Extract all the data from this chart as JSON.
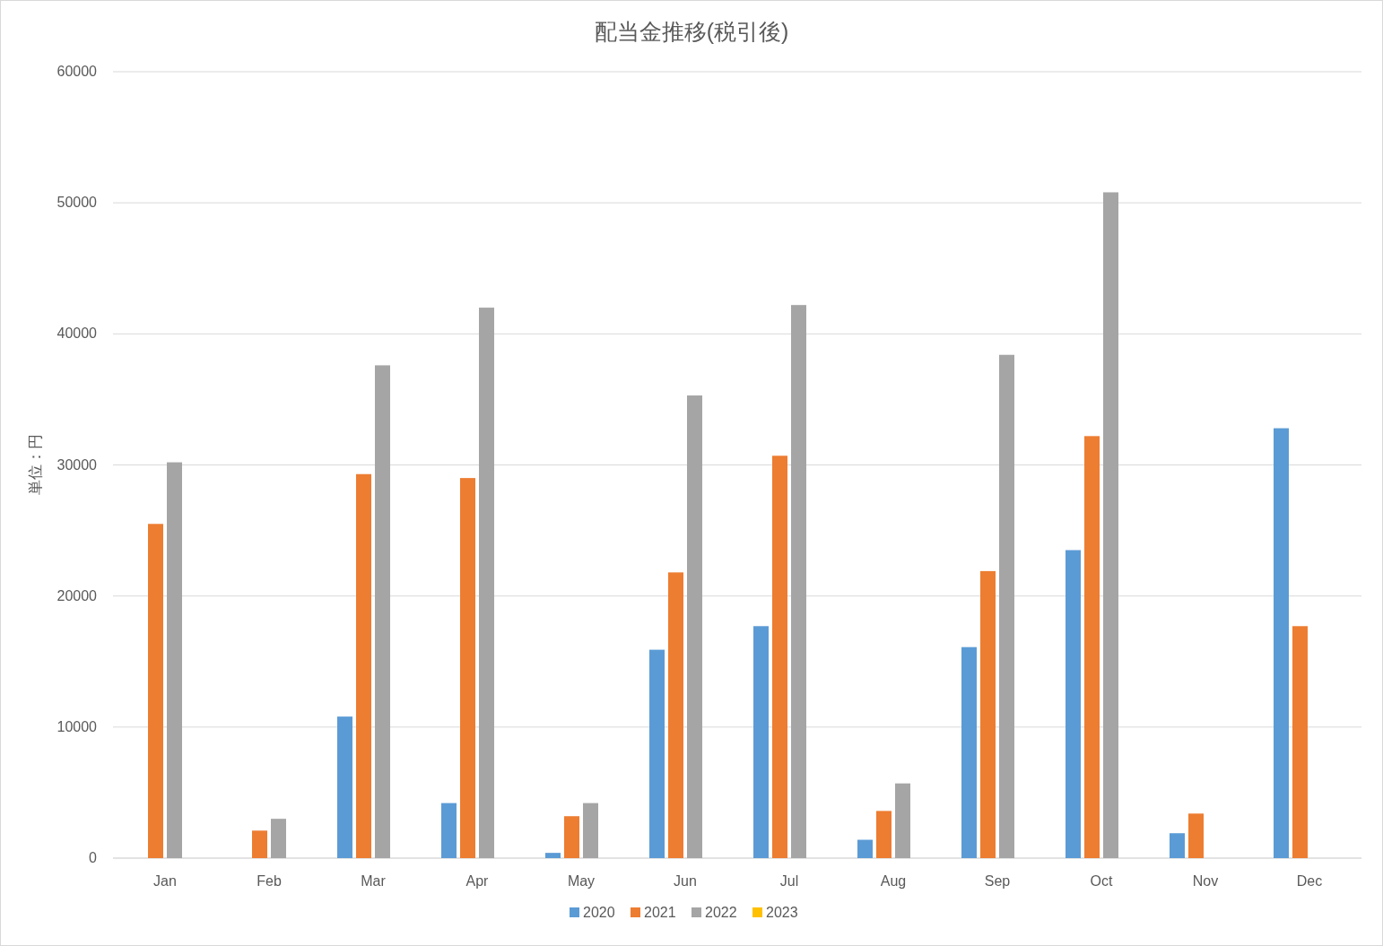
{
  "chart_data": {
    "type": "bar",
    "title": "配当金推移(税引後)",
    "ylabel": "単位：円",
    "categories": [
      "Jan",
      "Feb",
      "Mar",
      "Apr",
      "May",
      "Jun",
      "Jul",
      "Aug",
      "Sep",
      "Oct",
      "Nov",
      "Dec"
    ],
    "series": [
      {
        "name": "2020",
        "color": "#5b9bd5",
        "values": [
          null,
          null,
          10800,
          4200,
          400,
          15900,
          17700,
          1400,
          16100,
          23500,
          1900,
          32800
        ]
      },
      {
        "name": "2021",
        "color": "#ed7d31",
        "values": [
          25500,
          2100,
          29300,
          29000,
          3200,
          21800,
          30700,
          3600,
          21900,
          32200,
          3400,
          17700
        ]
      },
      {
        "name": "2022",
        "color": "#a5a5a5",
        "values": [
          30200,
          3000,
          37600,
          42000,
          4200,
          35300,
          42200,
          5700,
          38400,
          50800,
          null,
          null
        ]
      },
      {
        "name": "2023",
        "color": "#ffc000",
        "values": [
          null,
          null,
          null,
          null,
          null,
          null,
          null,
          null,
          null,
          null,
          null,
          null
        ]
      }
    ],
    "ylim": [
      0,
      60000
    ],
    "yticks": [
      0,
      10000,
      20000,
      30000,
      40000,
      50000,
      60000
    ],
    "grid": "y",
    "legend": "bottom"
  }
}
